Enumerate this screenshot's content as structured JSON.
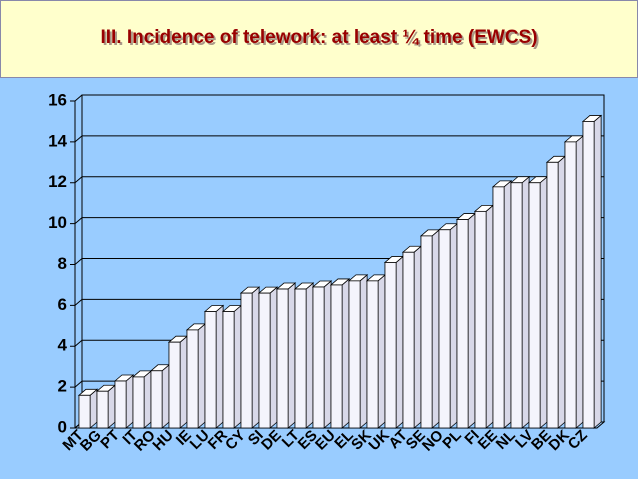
{
  "chart_data": {
    "type": "bar3d",
    "title": "III. Incidence of telework: at least ¼ time (EWCS)",
    "categories": [
      "MT",
      "BG",
      "PT",
      "IT",
      "RO",
      "HU",
      "IE",
      "LU",
      "FR",
      "CY",
      "SI",
      "DE",
      "LT",
      "ES",
      "EU",
      "EL",
      "SK",
      "UK",
      "AT",
      "SE",
      "NO",
      "PL",
      "FI",
      "EE",
      "NL",
      "LV",
      "BE",
      "DK",
      "CZ"
    ],
    "values": [
      1.6,
      1.8,
      2.3,
      2.5,
      2.8,
      4.2,
      4.8,
      5.7,
      5.7,
      6.6,
      6.6,
      6.8,
      6.8,
      6.9,
      7.0,
      7.2,
      7.2,
      8.1,
      8.6,
      9.4,
      9.7,
      10.2,
      10.6,
      11.8,
      12.0,
      12.0,
      13.0,
      14.0,
      15.0
    ],
    "color": "#f4f4fc",
    "ylim": [
      0,
      16
    ],
    "yticks": [
      0,
      2,
      4,
      6,
      8,
      10,
      12,
      14,
      16
    ],
    "grid": true
  }
}
